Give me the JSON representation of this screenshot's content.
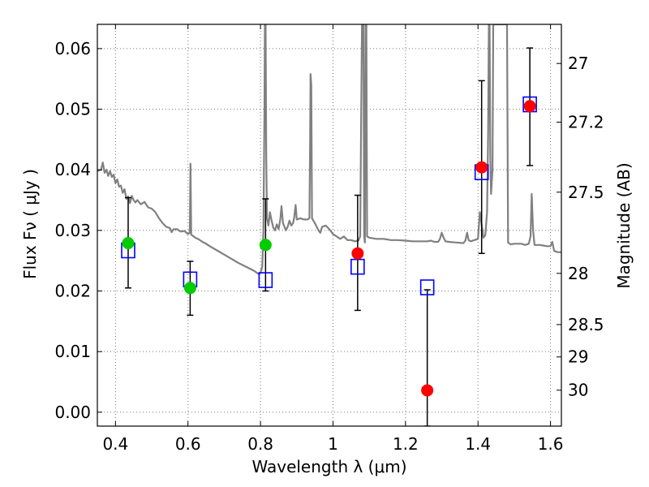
{
  "chart_data": {
    "type": "scatter",
    "xlabel": "Wavelength  λ (μm)",
    "ylabel": "Flux  Fν  ( μJy )",
    "ylabel_right": "Magnitude (AB)",
    "xlim": [
      0.35,
      1.63
    ],
    "ylim": [
      -0.0023,
      0.064
    ],
    "grid": true,
    "x_ticks": [
      {
        "value": 0.4,
        "label": "0.4"
      },
      {
        "value": 0.6,
        "label": "0.6"
      },
      {
        "value": 0.8,
        "label": "0.8"
      },
      {
        "value": 1.0,
        "label": "1"
      },
      {
        "value": 1.2,
        "label": "1.2"
      },
      {
        "value": 1.4,
        "label": "1.4"
      },
      {
        "value": 1.6,
        "label": "1.6"
      }
    ],
    "y_ticks": [
      {
        "value": 0.0,
        "label": "0.00"
      },
      {
        "value": 0.01,
        "label": "0.01"
      },
      {
        "value": 0.02,
        "label": "0.02"
      },
      {
        "value": 0.03,
        "label": "0.03"
      },
      {
        "value": 0.04,
        "label": "0.04"
      },
      {
        "value": 0.05,
        "label": "0.05"
      },
      {
        "value": 0.06,
        "label": "0.06"
      }
    ],
    "right_ticks": [
      {
        "magnitude": 27,
        "label": "27"
      },
      {
        "magnitude": 27.2,
        "label": "27.2"
      },
      {
        "magnitude": 27.5,
        "label": "27.5"
      },
      {
        "magnitude": 28,
        "label": "28"
      },
      {
        "magnitude": 28.5,
        "label": "28.5"
      },
      {
        "magnitude": 29,
        "label": "29"
      },
      {
        "magnitude": 30,
        "label": "30"
      }
    ],
    "colors": {
      "model": "#808080",
      "model_points": "#0000ff",
      "detected": "#00cc00",
      "other": "#ff0000",
      "errorbar": "#000000",
      "grid": "#777777"
    },
    "model_spectrum": [
      [
        0.35,
        0.0398
      ],
      [
        0.36,
        0.04
      ],
      [
        0.365,
        0.0412
      ],
      [
        0.37,
        0.0395
      ],
      [
        0.375,
        0.04
      ],
      [
        0.38,
        0.039
      ],
      [
        0.385,
        0.0398
      ],
      [
        0.39,
        0.0388
      ],
      [
        0.395,
        0.0392
      ],
      [
        0.4,
        0.0378
      ],
      [
        0.405,
        0.0384
      ],
      [
        0.41,
        0.0372
      ],
      [
        0.415,
        0.0374
      ],
      [
        0.42,
        0.0362
      ],
      [
        0.425,
        0.0368
      ],
      [
        0.43,
        0.0352
      ],
      [
        0.435,
        0.0356
      ],
      [
        0.44,
        0.0345
      ],
      [
        0.445,
        0.0357
      ],
      [
        0.45,
        0.035
      ],
      [
        0.455,
        0.0346
      ],
      [
        0.46,
        0.035
      ],
      [
        0.47,
        0.0343
      ],
      [
        0.48,
        0.0347
      ],
      [
        0.49,
        0.0338
      ],
      [
        0.5,
        0.0336
      ],
      [
        0.51,
        0.033
      ],
      [
        0.52,
        0.032
      ],
      [
        0.53,
        0.0312
      ],
      [
        0.54,
        0.0306
      ],
      [
        0.55,
        0.0304
      ],
      [
        0.555,
        0.0297
      ],
      [
        0.56,
        0.0302
      ],
      [
        0.57,
        0.0302
      ],
      [
        0.58,
        0.0298
      ],
      [
        0.59,
        0.0299
      ],
      [
        0.6,
        0.0294
      ],
      [
        0.605,
        0.0296
      ],
      [
        0.607,
        0.041
      ],
      [
        0.609,
        0.0293
      ],
      [
        0.62,
        0.0288
      ],
      [
        0.63,
        0.0285
      ],
      [
        0.64,
        0.0281
      ],
      [
        0.65,
        0.0278
      ],
      [
        0.66,
        0.0274
      ],
      [
        0.68,
        0.0267
      ],
      [
        0.7,
        0.026
      ],
      [
        0.72,
        0.0253
      ],
      [
        0.74,
        0.0246
      ],
      [
        0.76,
        0.024
      ],
      [
        0.78,
        0.0234
      ],
      [
        0.795,
        0.0228
      ],
      [
        0.8,
        0.023
      ],
      [
        0.805,
        0.024
      ],
      [
        0.808,
        0.03
      ],
      [
        0.811,
        0.05
      ],
      [
        0.812,
        0.064
      ],
      [
        0.814,
        0.064
      ],
      [
        0.816,
        0.042
      ],
      [
        0.818,
        0.032
      ],
      [
        0.822,
        0.0308
      ],
      [
        0.826,
        0.033
      ],
      [
        0.83,
        0.0318
      ],
      [
        0.835,
        0.0305
      ],
      [
        0.84,
        0.03
      ],
      [
        0.845,
        0.031
      ],
      [
        0.85,
        0.0302
      ],
      [
        0.855,
        0.032
      ],
      [
        0.858,
        0.034
      ],
      [
        0.862,
        0.0312
      ],
      [
        0.87,
        0.03
      ],
      [
        0.875,
        0.0306
      ],
      [
        0.88,
        0.0316
      ],
      [
        0.885,
        0.0308
      ],
      [
        0.89,
        0.0312
      ],
      [
        0.893,
        0.0322
      ],
      [
        0.897,
        0.0342
      ],
      [
        0.9,
        0.0318
      ],
      [
        0.91,
        0.032
      ],
      [
        0.92,
        0.0318
      ],
      [
        0.93,
        0.0318
      ],
      [
        0.935,
        0.032
      ],
      [
        0.937,
        0.045
      ],
      [
        0.938,
        0.0558
      ],
      [
        0.94,
        0.054
      ],
      [
        0.942,
        0.032
      ],
      [
        0.95,
        0.0312
      ],
      [
        0.96,
        0.03
      ],
      [
        0.965,
        0.0296
      ],
      [
        0.97,
        0.0306
      ],
      [
        0.98,
        0.0308
      ],
      [
        0.99,
        0.0302
      ],
      [
        1.0,
        0.0294
      ],
      [
        1.01,
        0.029
      ],
      [
        1.02,
        0.0286
      ],
      [
        1.03,
        0.029
      ],
      [
        1.04,
        0.0284
      ],
      [
        1.05,
        0.0284
      ],
      [
        1.06,
        0.0282
      ],
      [
        1.07,
        0.0283
      ],
      [
        1.075,
        0.029
      ],
      [
        1.078,
        0.05
      ],
      [
        1.08,
        0.064
      ],
      [
        1.084,
        0.064
      ],
      [
        1.086,
        0.029
      ],
      [
        1.088,
        0.028
      ],
      [
        1.09,
        0.064
      ],
      [
        1.092,
        0.064
      ],
      [
        1.094,
        0.029
      ],
      [
        1.1,
        0.0288
      ],
      [
        1.12,
        0.0286
      ],
      [
        1.14,
        0.0286
      ],
      [
        1.16,
        0.0284
      ],
      [
        1.18,
        0.0284
      ],
      [
        1.2,
        0.0283
      ],
      [
        1.22,
        0.0282
      ],
      [
        1.24,
        0.0282
      ],
      [
        1.25,
        0.0282
      ],
      [
        1.26,
        0.0282
      ],
      [
        1.27,
        0.0283
      ],
      [
        1.28,
        0.0281
      ],
      [
        1.29,
        0.0281
      ],
      [
        1.295,
        0.0286
      ],
      [
        1.3,
        0.0296
      ],
      [
        1.305,
        0.0288
      ],
      [
        1.31,
        0.0282
      ],
      [
        1.32,
        0.0281
      ],
      [
        1.34,
        0.028
      ],
      [
        1.36,
        0.0279
      ],
      [
        1.365,
        0.0283
      ],
      [
        1.37,
        0.0296
      ],
      [
        1.374,
        0.0284
      ],
      [
        1.38,
        0.0282
      ],
      [
        1.39,
        0.0284
      ],
      [
        1.4,
        0.0286
      ],
      [
        1.405,
        0.033
      ],
      [
        1.41,
        0.031
      ],
      [
        1.415,
        0.0288
      ],
      [
        1.42,
        0.0292
      ],
      [
        1.425,
        0.033
      ],
      [
        1.428,
        0.046
      ],
      [
        1.43,
        0.064
      ],
      [
        1.432,
        0.064
      ],
      [
        1.434,
        0.042
      ],
      [
        1.436,
        0.036
      ],
      [
        1.44,
        0.04
      ],
      [
        1.442,
        0.064
      ],
      [
        1.455,
        0.064
      ],
      [
        1.47,
        0.064
      ],
      [
        1.48,
        0.064
      ],
      [
        1.483,
        0.028
      ],
      [
        1.49,
        0.0277
      ],
      [
        1.5,
        0.0278
      ],
      [
        1.51,
        0.0278
      ],
      [
        1.52,
        0.0278
      ],
      [
        1.53,
        0.0276
      ],
      [
        1.54,
        0.0278
      ],
      [
        1.545,
        0.029
      ],
      [
        1.548,
        0.036
      ],
      [
        1.552,
        0.03
      ],
      [
        1.556,
        0.0276
      ],
      [
        1.57,
        0.0276
      ],
      [
        1.58,
        0.0275
      ],
      [
        1.59,
        0.0274
      ],
      [
        1.6,
        0.0274
      ],
      [
        1.605,
        0.0281
      ],
      [
        1.61,
        0.0266
      ],
      [
        1.62,
        0.0264
      ],
      [
        1.63,
        0.0264
      ]
    ],
    "model_points": [
      {
        "x": 0.435,
        "y": 0.0267
      },
      {
        "x": 0.606,
        "y": 0.0219
      },
      {
        "x": 0.814,
        "y": 0.0218
      },
      {
        "x": 1.068,
        "y": 0.024
      },
      {
        "x": 1.26,
        "y": 0.0206
      },
      {
        "x": 1.41,
        "y": 0.0396
      },
      {
        "x": 1.543,
        "y": 0.0508
      }
    ],
    "observed": [
      {
        "x": 0.435,
        "y": 0.0279,
        "err_low": 0.0205,
        "err_high": 0.0354,
        "group": "detected"
      },
      {
        "x": 0.606,
        "y": 0.0205,
        "err_low": 0.016,
        "err_high": 0.0249,
        "group": "detected"
      },
      {
        "x": 0.814,
        "y": 0.0276,
        "err_low": 0.02,
        "err_high": 0.0352,
        "group": "detected"
      },
      {
        "x": 1.068,
        "y": 0.0262,
        "err_low": 0.0168,
        "err_high": 0.0358,
        "group": "other"
      },
      {
        "x": 1.26,
        "y": 0.0036,
        "err_low": -0.0023,
        "err_high": 0.0202,
        "group": "other"
      },
      {
        "x": 1.41,
        "y": 0.0404,
        "err_low": 0.0262,
        "err_high": 0.0547,
        "group": "other"
      },
      {
        "x": 1.543,
        "y": 0.0505,
        "err_low": 0.0407,
        "err_high": 0.0601,
        "group": "other"
      }
    ]
  }
}
